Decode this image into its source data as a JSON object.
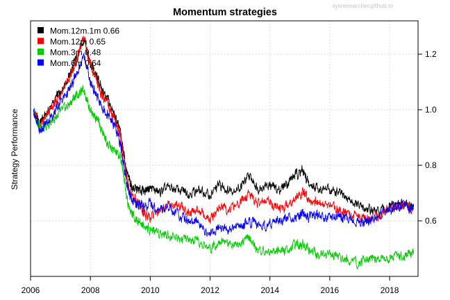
{
  "chart_data": {
    "type": "line",
    "title": "Momentum strategies",
    "watermark": "sysresearcher.github.io",
    "xlabel": "",
    "ylabel": "Strategy Performance",
    "xlim": [
      2006.0,
      2018.95
    ],
    "ylim": [
      0.4,
      1.32
    ],
    "x_ticks": [
      "2006",
      "2008",
      "2010",
      "2012",
      "2014",
      "2016",
      "2018"
    ],
    "y_ticks": [
      "0.6",
      "0.8",
      "1.0",
      "1.2"
    ],
    "y_axis_side": "right",
    "grid": true,
    "legend_position": "top-left",
    "series": [
      {
        "name": "Mom.12m.1m 0.66",
        "color": "#000000",
        "x": [
          2006.1,
          2006.3,
          2006.5,
          2006.8,
          2007.0,
          2007.3,
          2007.5,
          2007.8,
          2008.0,
          2008.2,
          2008.4,
          2008.6,
          2008.8,
          2009.0,
          2009.1,
          2009.25,
          2009.4,
          2009.6,
          2009.8,
          2010.0,
          2010.3,
          2010.6,
          2011.0,
          2011.3,
          2011.6,
          2012.0,
          2012.3,
          2012.6,
          2013.0,
          2013.3,
          2013.6,
          2014.0,
          2014.3,
          2014.6,
          2014.9,
          2015.1,
          2015.3,
          2015.6,
          2016.0,
          2016.3,
          2016.6,
          2017.0,
          2017.3,
          2017.6,
          2018.0,
          2018.3,
          2018.6,
          2018.8
        ],
        "values": [
          1.0,
          0.95,
          0.98,
          1.03,
          1.07,
          1.12,
          1.18,
          1.25,
          1.17,
          1.12,
          1.07,
          1.03,
          0.98,
          0.92,
          0.85,
          0.76,
          0.72,
          0.71,
          0.71,
          0.72,
          0.7,
          0.72,
          0.71,
          0.7,
          0.71,
          0.69,
          0.73,
          0.71,
          0.72,
          0.76,
          0.72,
          0.73,
          0.71,
          0.74,
          0.77,
          0.78,
          0.73,
          0.72,
          0.71,
          0.7,
          0.68,
          0.65,
          0.64,
          0.63,
          0.65,
          0.66,
          0.66,
          0.65
        ]
      },
      {
        "name": "Mom.12m 0.65",
        "color": "#ff0000",
        "x": [
          2006.1,
          2006.3,
          2006.5,
          2006.8,
          2007.0,
          2007.3,
          2007.5,
          2007.8,
          2008.0,
          2008.2,
          2008.4,
          2008.6,
          2008.8,
          2009.0,
          2009.1,
          2009.25,
          2009.4,
          2009.6,
          2009.8,
          2010.0,
          2010.3,
          2010.6,
          2011.0,
          2011.3,
          2011.6,
          2012.0,
          2012.3,
          2012.6,
          2013.0,
          2013.3,
          2013.6,
          2014.0,
          2014.3,
          2014.6,
          2014.9,
          2015.1,
          2015.3,
          2015.6,
          2016.0,
          2016.3,
          2016.6,
          2017.0,
          2017.3,
          2017.6,
          2018.0,
          2018.3,
          2018.6,
          2018.8
        ],
        "values": [
          1.0,
          0.94,
          0.97,
          1.02,
          1.06,
          1.11,
          1.17,
          1.26,
          1.16,
          1.1,
          1.05,
          1.02,
          0.97,
          0.91,
          0.84,
          0.73,
          0.69,
          0.67,
          0.62,
          0.61,
          0.64,
          0.66,
          0.65,
          0.63,
          0.64,
          0.6,
          0.65,
          0.64,
          0.66,
          0.7,
          0.66,
          0.67,
          0.64,
          0.66,
          0.69,
          0.7,
          0.68,
          0.67,
          0.65,
          0.64,
          0.63,
          0.61,
          0.61,
          0.62,
          0.64,
          0.65,
          0.65,
          0.64
        ]
      },
      {
        "name": "Mom.3m 0.48",
        "color": "#00cc00",
        "x": [
          2006.1,
          2006.3,
          2006.5,
          2006.8,
          2007.0,
          2007.3,
          2007.5,
          2007.8,
          2008.0,
          2008.2,
          2008.4,
          2008.6,
          2008.8,
          2009.0,
          2009.1,
          2009.25,
          2009.4,
          2009.6,
          2009.8,
          2010.0,
          2010.3,
          2010.6,
          2011.0,
          2011.3,
          2011.6,
          2012.0,
          2012.3,
          2012.6,
          2013.0,
          2013.3,
          2013.6,
          2014.0,
          2014.3,
          2014.6,
          2014.9,
          2015.1,
          2015.3,
          2015.6,
          2016.0,
          2016.3,
          2016.6,
          2017.0,
          2017.3,
          2017.6,
          2018.0,
          2018.3,
          2018.6,
          2018.8
        ],
        "values": [
          1.0,
          0.94,
          0.93,
          0.97,
          0.99,
          1.02,
          1.05,
          1.07,
          1.0,
          0.97,
          0.92,
          0.87,
          0.85,
          0.83,
          0.78,
          0.66,
          0.62,
          0.6,
          0.58,
          0.57,
          0.56,
          0.55,
          0.54,
          0.53,
          0.52,
          0.5,
          0.53,
          0.52,
          0.52,
          0.54,
          0.49,
          0.49,
          0.49,
          0.5,
          0.51,
          0.52,
          0.5,
          0.48,
          0.48,
          0.47,
          0.46,
          0.45,
          0.46,
          0.46,
          0.47,
          0.47,
          0.48,
          0.48
        ]
      },
      {
        "name": "Mom.6m 0.64",
        "color": "#0000ff",
        "x": [
          2006.1,
          2006.3,
          2006.5,
          2006.8,
          2007.0,
          2007.3,
          2007.5,
          2007.8,
          2008.0,
          2008.2,
          2008.4,
          2008.6,
          2008.8,
          2009.0,
          2009.1,
          2009.25,
          2009.4,
          2009.6,
          2009.8,
          2010.0,
          2010.3,
          2010.6,
          2011.0,
          2011.3,
          2011.6,
          2012.0,
          2012.3,
          2012.6,
          2013.0,
          2013.3,
          2013.6,
          2014.0,
          2014.3,
          2014.6,
          2014.9,
          2015.1,
          2015.3,
          2015.6,
          2016.0,
          2016.3,
          2016.6,
          2017.0,
          2017.3,
          2017.6,
          2018.0,
          2018.3,
          2018.6,
          2018.8
        ],
        "values": [
          1.0,
          0.92,
          0.95,
          0.99,
          1.03,
          1.07,
          1.12,
          1.19,
          1.1,
          1.05,
          1.01,
          0.98,
          0.94,
          0.88,
          0.81,
          0.72,
          0.67,
          0.66,
          0.65,
          0.66,
          0.64,
          0.65,
          0.62,
          0.6,
          0.59,
          0.55,
          0.58,
          0.57,
          0.58,
          0.6,
          0.58,
          0.59,
          0.6,
          0.61,
          0.62,
          0.63,
          0.61,
          0.62,
          0.61,
          0.62,
          0.61,
          0.6,
          0.6,
          0.62,
          0.64,
          0.65,
          0.65,
          0.65
        ]
      }
    ]
  }
}
